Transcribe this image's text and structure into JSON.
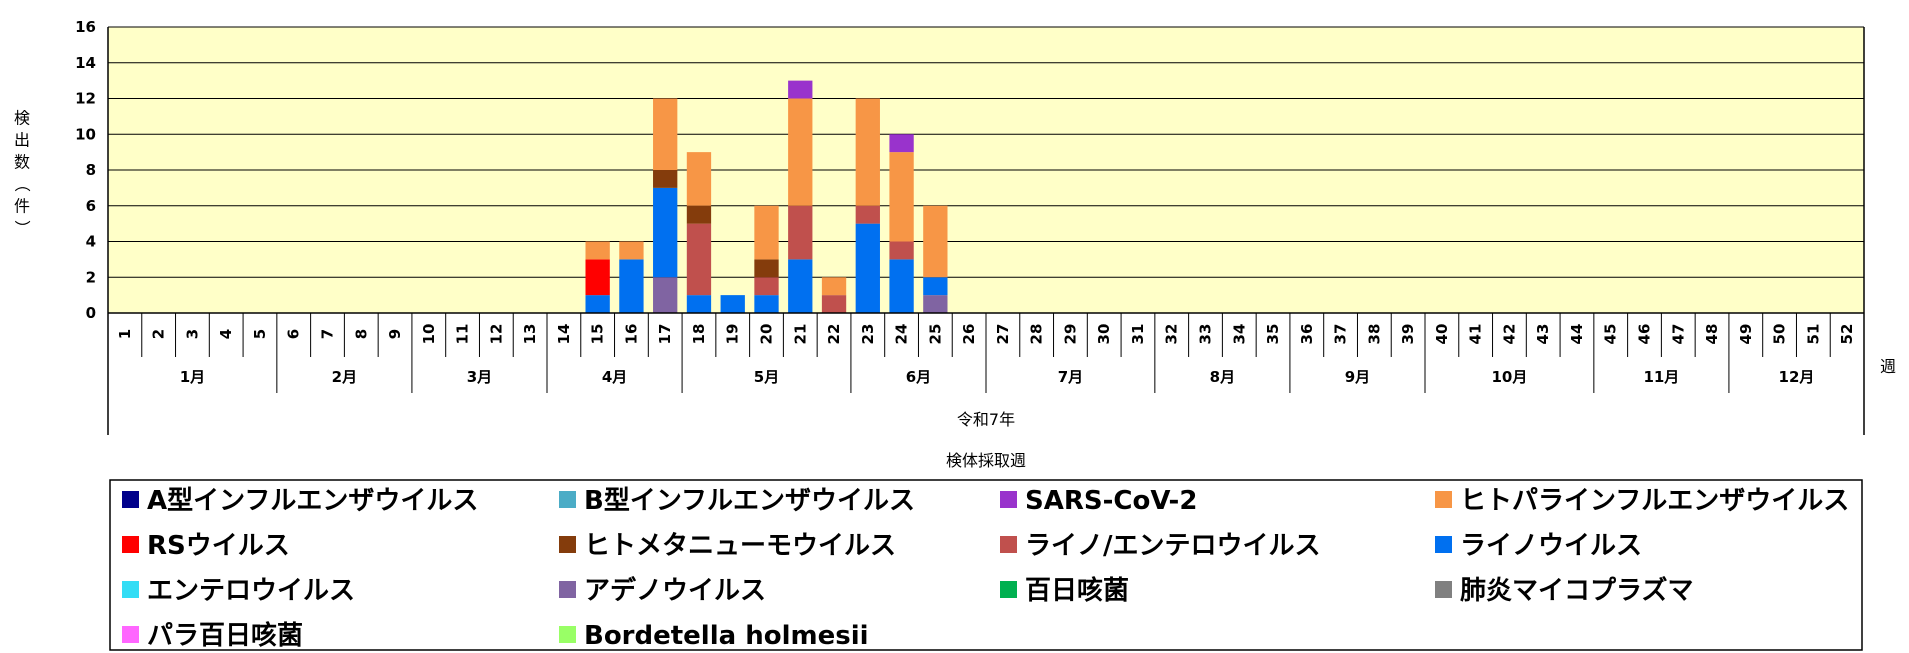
{
  "chart_data": {
    "type": "bar",
    "stacked": true,
    "x": [
      "1",
      "2",
      "3",
      "4",
      "5",
      "6",
      "7",
      "8",
      "9",
      "10",
      "11",
      "12",
      "13",
      "14",
      "15",
      "16",
      "17",
      "18",
      "19",
      "20",
      "21",
      "22",
      "23",
      "24",
      "25",
      "26",
      "27",
      "28",
      "29",
      "30",
      "31",
      "32",
      "33",
      "34",
      "35",
      "36",
      "37",
      "38",
      "39",
      "40",
      "41",
      "42",
      "43",
      "44",
      "45",
      "46",
      "47",
      "48",
      "49",
      "50",
      "51",
      "52"
    ],
    "months": [
      {
        "label": "1月",
        "first_week": 1,
        "last_week": 5
      },
      {
        "label": "2月",
        "first_week": 6,
        "last_week": 9
      },
      {
        "label": "3月",
        "first_week": 10,
        "last_week": 13
      },
      {
        "label": "4月",
        "first_week": 14,
        "last_week": 17
      },
      {
        "label": "5月",
        "first_week": 18,
        "last_week": 22
      },
      {
        "label": "6月",
        "first_week": 23,
        "last_week": 26
      },
      {
        "label": "7月",
        "first_week": 27,
        "last_week": 31
      },
      {
        "label": "8月",
        "first_week": 32,
        "last_week": 35
      },
      {
        "label": "9月",
        "first_week": 36,
        "last_week": 39
      },
      {
        "label": "10月",
        "first_week": 40,
        "last_week": 44
      },
      {
        "label": "11月",
        "first_week": 45,
        "last_week": 48
      },
      {
        "label": "12月",
        "first_week": 49,
        "last_week": 52
      }
    ],
    "year_label": "令和7年",
    "xlabel": "検体採取週",
    "x_unit_label": "週",
    "ylabel": "検出数（件）",
    "ylim": [
      0,
      16
    ],
    "yticks": [
      0,
      2,
      4,
      6,
      8,
      10,
      12,
      14,
      16
    ],
    "grid": true,
    "legend_position": "bottom",
    "series": [
      {
        "name": "A型インフルエンザウイルス",
        "color": "#00008B",
        "values": {}
      },
      {
        "name": "B型インフルエンザウイルス",
        "color": "#4BACC6",
        "values": {}
      },
      {
        "name": "SARS-CoV-2",
        "color": "#9933CC",
        "values": {
          "21": 1,
          "24": 1
        }
      },
      {
        "name": "ヒトパラインフルエンザウイルス",
        "color": "#F79646",
        "values": {
          "15": 1,
          "16": 1,
          "17": 4,
          "18": 3,
          "20": 3,
          "21": 6,
          "22": 1,
          "23": 6,
          "24": 5,
          "25": 4
        }
      },
      {
        "name": "RSウイルス",
        "color": "#FF0000",
        "values": {
          "15": 2
        }
      },
      {
        "name": "ヒトメタニューモウイルス",
        "color": "#843C0C",
        "values": {
          "17": 1,
          "18": 1,
          "20": 1
        }
      },
      {
        "name": "ライノ/エンテロウイルス",
        "color": "#C0504D",
        "values": {
          "18": 4,
          "20": 1,
          "21": 3,
          "22": 1,
          "23": 1,
          "24": 1
        }
      },
      {
        "name": "ライノウイルス",
        "color": "#0070F0",
        "values": {
          "15": 1,
          "16": 3,
          "17": 5,
          "18": 1,
          "19": 1,
          "20": 1,
          "21": 3,
          "23": 5,
          "24": 3,
          "25": 1
        }
      },
      {
        "name": "エンテロウイルス",
        "color": "#33DDF5",
        "values": {}
      },
      {
        "name": "アデノウイルス",
        "color": "#8064A2",
        "values": {
          "17": 2,
          "25": 1
        }
      },
      {
        "name": "百日咳菌",
        "color": "#00B050",
        "values": {}
      },
      {
        "name": "肺炎マイコプラズマ",
        "color": "#808080",
        "values": {}
      },
      {
        "name": "パラ百日咳菌",
        "color": "#FF66FF",
        "values": {}
      },
      {
        "name": "Bordetella holmesii",
        "color": "#99FF66",
        "values": {}
      }
    ],
    "colors": {
      "plot_background": "#FFFFC8",
      "grid": "#000000"
    }
  }
}
